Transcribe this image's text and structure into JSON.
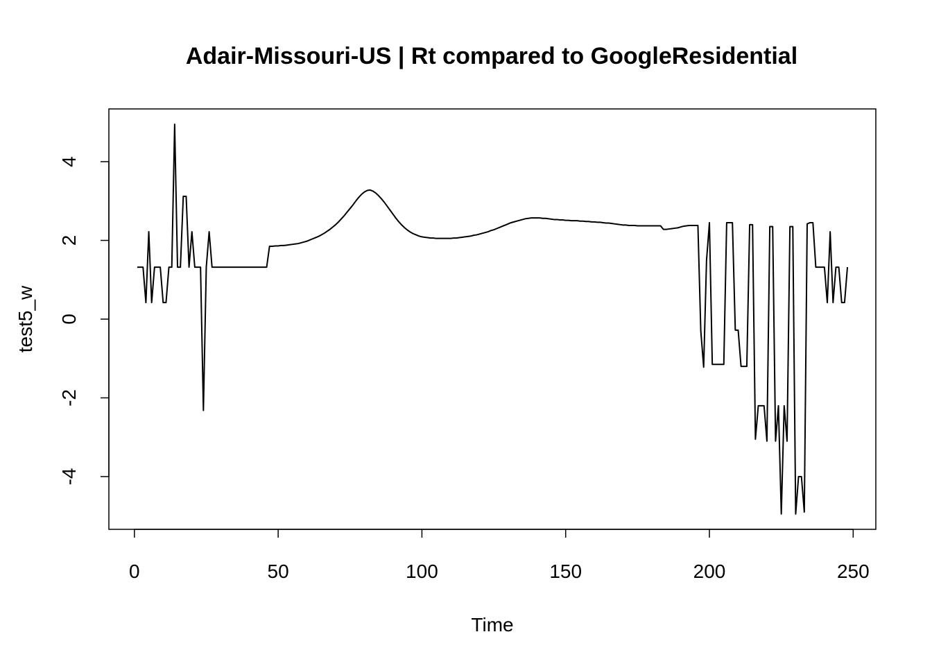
{
  "chart_data": {
    "type": "line",
    "title": "Adair-Missouri-US | Rt compared to GoogleResidential",
    "x_label": "Time",
    "y_label": "test5_w",
    "xlim": [
      -8.88,
      257.88
    ],
    "ylim": [
      -5.34,
      5.34
    ],
    "xticks": [
      0,
      50,
      100,
      150,
      200,
      250
    ],
    "yticks": [
      -4,
      -2,
      0,
      2,
      4
    ],
    "x": [
      1,
      2,
      3,
      4,
      5,
      6,
      7,
      8,
      9,
      10,
      11,
      12,
      13,
      14,
      15,
      16,
      17,
      18,
      19,
      20,
      21,
      22,
      23,
      24,
      25,
      26,
      27,
      28,
      29,
      30,
      31,
      32,
      33,
      34,
      35,
      36,
      37,
      38,
      39,
      40,
      41,
      42,
      43,
      44,
      45,
      46,
      47,
      48,
      49,
      50,
      51,
      52,
      53,
      54,
      55,
      56,
      57,
      58,
      59,
      60,
      61,
      62,
      63,
      64,
      65,
      66,
      67,
      68,
      69,
      70,
      71,
      72,
      73,
      74,
      75,
      76,
      77,
      78,
      79,
      80,
      81,
      82,
      83,
      84,
      85,
      86,
      87,
      88,
      89,
      90,
      91,
      92,
      93,
      94,
      95,
      96,
      97,
      98,
      99,
      100,
      101,
      102,
      103,
      104,
      105,
      106,
      107,
      108,
      109,
      110,
      111,
      112,
      113,
      114,
      115,
      116,
      117,
      118,
      119,
      120,
      121,
      122,
      123,
      124,
      125,
      126,
      127,
      128,
      129,
      130,
      131,
      132,
      133,
      134,
      135,
      136,
      137,
      138,
      139,
      140,
      141,
      142,
      143,
      144,
      145,
      146,
      147,
      148,
      149,
      150,
      151,
      152,
      153,
      154,
      155,
      156,
      157,
      158,
      159,
      160,
      161,
      162,
      163,
      164,
      165,
      166,
      167,
      168,
      169,
      170,
      171,
      172,
      173,
      174,
      175,
      176,
      177,
      178,
      179,
      180,
      181,
      182,
      183,
      184,
      185,
      186,
      187,
      188,
      189,
      190,
      191,
      192,
      193,
      194,
      195,
      196,
      197,
      198,
      199,
      200,
      201,
      202,
      203,
      204,
      205,
      206,
      207,
      208,
      209,
      210,
      211,
      212,
      213,
      214,
      215,
      216,
      217,
      218,
      219,
      220,
      221,
      222,
      223,
      224,
      225,
      226,
      227,
      228,
      229,
      230,
      231,
      232,
      233,
      234,
      235,
      236,
      237,
      238,
      239,
      240,
      241,
      242,
      243,
      244,
      245,
      246,
      247,
      248
    ],
    "series": [
      {
        "color": "#000000",
        "values": [
          1.32,
          1.32,
          1.32,
          0.42,
          2.22,
          0.42,
          1.32,
          1.32,
          1.32,
          0.42,
          0.42,
          1.32,
          1.32,
          4.95,
          1.32,
          1.32,
          3.12,
          3.12,
          1.32,
          2.22,
          1.32,
          1.32,
          1.32,
          -2.32,
          1.32,
          2.22,
          1.32,
          1.32,
          1.32,
          1.32,
          1.32,
          1.32,
          1.32,
          1.32,
          1.32,
          1.32,
          1.32,
          1.32,
          1.32,
          1.32,
          1.32,
          1.32,
          1.32,
          1.32,
          1.32,
          1.32,
          1.85,
          1.85,
          1.86,
          1.86,
          1.87,
          1.87,
          1.88,
          1.89,
          1.9,
          1.91,
          1.92,
          1.94,
          1.96,
          1.98,
          2.01,
          2.04,
          2.07,
          2.1,
          2.14,
          2.18,
          2.23,
          2.28,
          2.34,
          2.4,
          2.47,
          2.55,
          2.63,
          2.72,
          2.81,
          2.9,
          3.0,
          3.09,
          3.17,
          3.23,
          3.27,
          3.28,
          3.25,
          3.2,
          3.13,
          3.05,
          2.96,
          2.86,
          2.76,
          2.66,
          2.56,
          2.47,
          2.39,
          2.32,
          2.26,
          2.21,
          2.17,
          2.14,
          2.11,
          2.09,
          2.08,
          2.07,
          2.06,
          2.06,
          2.05,
          2.05,
          2.05,
          2.05,
          2.05,
          2.05,
          2.06,
          2.06,
          2.07,
          2.08,
          2.09,
          2.1,
          2.11,
          2.13,
          2.14,
          2.16,
          2.18,
          2.2,
          2.22,
          2.25,
          2.27,
          2.3,
          2.33,
          2.36,
          2.39,
          2.42,
          2.45,
          2.47,
          2.49,
          2.51,
          2.53,
          2.55,
          2.56,
          2.57,
          2.57,
          2.57,
          2.57,
          2.56,
          2.56,
          2.55,
          2.54,
          2.53,
          2.53,
          2.52,
          2.52,
          2.51,
          2.51,
          2.5,
          2.5,
          2.5,
          2.49,
          2.49,
          2.48,
          2.48,
          2.47,
          2.47,
          2.46,
          2.46,
          2.45,
          2.44,
          2.44,
          2.43,
          2.42,
          2.41,
          2.4,
          2.39,
          2.39,
          2.38,
          2.38,
          2.38,
          2.37,
          2.37,
          2.37,
          2.37,
          2.37,
          2.37,
          2.37,
          2.37,
          2.37,
          2.28,
          2.28,
          2.29,
          2.3,
          2.31,
          2.32,
          2.34,
          2.36,
          2.37,
          2.38,
          2.38,
          2.38,
          2.38,
          -0.3,
          -1.22,
          1.5,
          2.45,
          -1.15,
          -1.15,
          -1.15,
          -1.15,
          -1.15,
          2.45,
          2.45,
          2.45,
          -0.28,
          -0.28,
          -1.2,
          -1.2,
          -1.2,
          2.4,
          2.4,
          -3.05,
          -2.2,
          -2.2,
          -2.2,
          -3.1,
          2.35,
          2.35,
          -3.1,
          -2.2,
          -4.95,
          -2.2,
          -3.1,
          2.35,
          2.35,
          -4.95,
          -4.0,
          -4.0,
          -4.9,
          2.42,
          2.45,
          2.45,
          1.32,
          1.32,
          1.32,
          1.32,
          0.42,
          2.22,
          0.42,
          1.32,
          1.32,
          0.42,
          0.42,
          1.32
        ]
      }
    ]
  }
}
